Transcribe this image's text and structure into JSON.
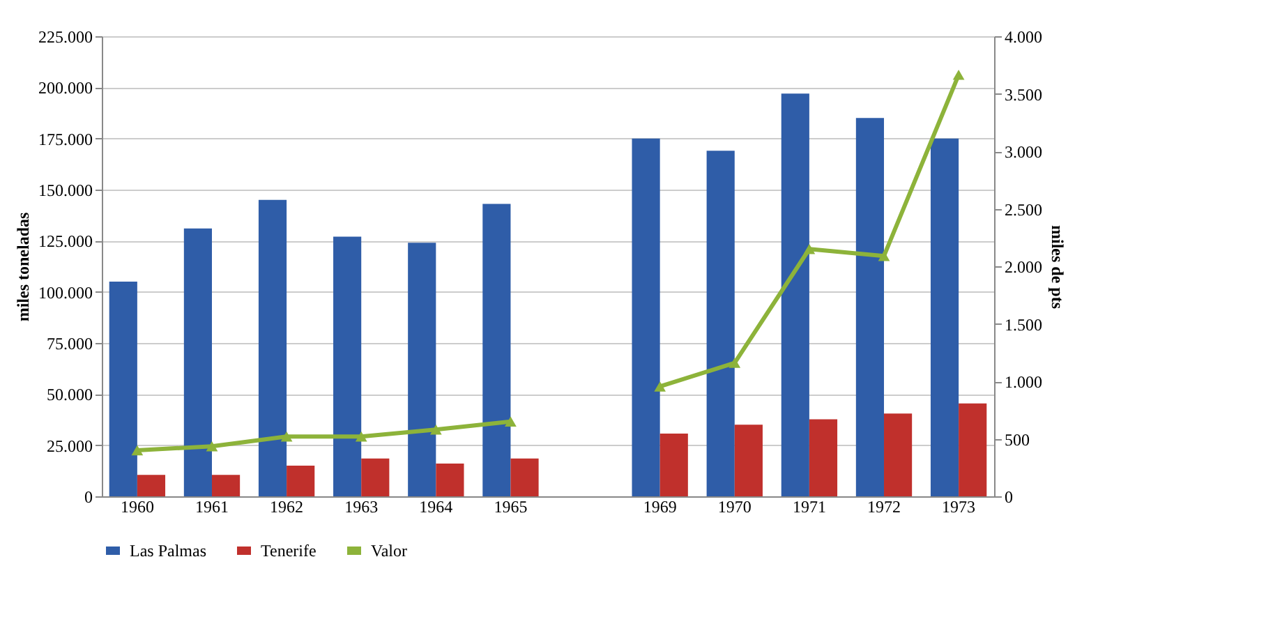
{
  "chart_data": {
    "type": "bar",
    "categories": [
      "1960",
      "1961",
      "1962",
      "1963",
      "1964",
      "1965",
      null,
      "1969",
      "1970",
      "1971",
      "1972",
      "1973"
    ],
    "ylabel": "miles toneladas",
    "y2label": "miles de pts",
    "ylim": [
      0,
      225000
    ],
    "yticks": [
      {
        "value": 0,
        "label": "0"
      },
      {
        "value": 25000,
        "label": "25.000"
      },
      {
        "value": 50000,
        "label": "50.000"
      },
      {
        "value": 75000,
        "label": "75.000"
      },
      {
        "value": 100000,
        "label": "100.000"
      },
      {
        "value": 125000,
        "label": "125.000"
      },
      {
        "value": 150000,
        "label": "150.000"
      },
      {
        "value": 175000,
        "label": "175.000"
      },
      {
        "value": 200000,
        "label": "200.000"
      },
      {
        "value": 225000,
        "label": "225.000"
      }
    ],
    "y2lim": [
      0,
      4000
    ],
    "y2ticks": [
      {
        "value": 0,
        "label": "0"
      },
      {
        "value": 500,
        "label": "500"
      },
      {
        "value": 1000,
        "label": "1.000"
      },
      {
        "value": 1500,
        "label": "1.500"
      },
      {
        "value": 2000,
        "label": "2.000"
      },
      {
        "value": 2500,
        "label": "2.500"
      },
      {
        "value": 3000,
        "label": "3.000"
      },
      {
        "value": 3500,
        "label": "3.500"
      },
      {
        "value": 4000,
        "label": "4.000"
      }
    ],
    "grid": "y",
    "legend": "bottom",
    "series": [
      {
        "name": "Las Palmas",
        "color": "#2f5da8",
        "values": [
          105000,
          131000,
          145000,
          127000,
          124000,
          143000,
          null,
          175000,
          169000,
          197000,
          185000,
          175000
        ]
      },
      {
        "name": "Tenerife",
        "color": "#c0302c",
        "values": [
          10500,
          10500,
          15000,
          18500,
          16000,
          18500,
          null,
          30700,
          35000,
          37700,
          40500,
          45400
        ]
      },
      {
        "name": "Valor",
        "color": "#8db33a",
        "type": "line",
        "axis": "y2",
        "marker": "triangle",
        "values": [
          400,
          435,
          520,
          520,
          580,
          650,
          null,
          955,
          1160,
          2150,
          2090,
          3665
        ]
      }
    ]
  }
}
